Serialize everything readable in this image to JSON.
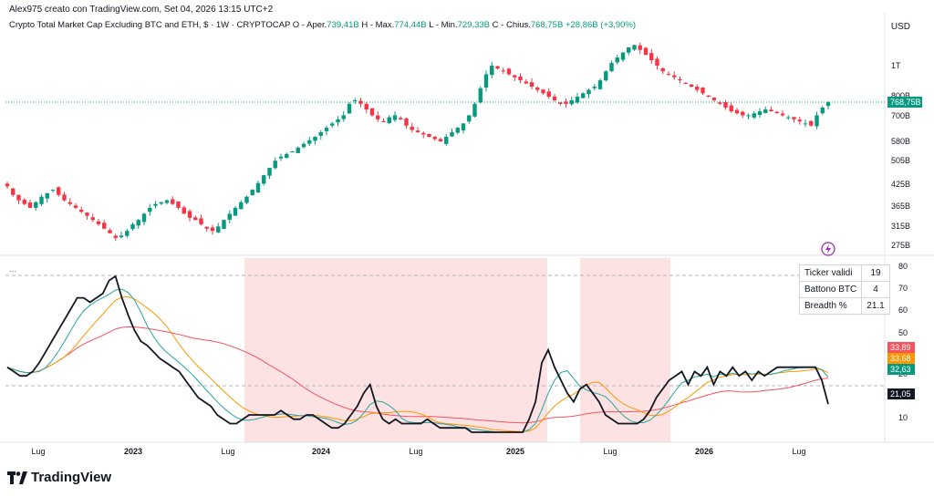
{
  "header": {
    "creator_line": "Alex975 creato con TradingView.com, Set 04, 2026 13:15 UTC+2",
    "symbol": "Crypto Total Market Cap Excluding BTC and ETH, $ · 1W · CRYPTOCAP",
    "o_label": "O - Aper.",
    "o_value": "739,41B",
    "h_label": "H - Max.",
    "h_value": "774,44B",
    "l_label": "L - Min.",
    "l_value": "729,33B",
    "c_label": "C - Chius.",
    "c_value": "768,75B",
    "change": "+28,86B (+3,90%)",
    "currency": "USD"
  },
  "price_axis": [
    "1T",
    "800B",
    "700B",
    "580B",
    "505B",
    "425B",
    "365B",
    "315B",
    "275B"
  ],
  "price_tag": "768,75B",
  "indicator_axis": [
    "80",
    "70",
    "60",
    "50",
    "20",
    "10"
  ],
  "indicator_tags": [
    {
      "text": "33,89",
      "color": "#f7525f"
    },
    {
      "text": "33,68",
      "color": "#ff9800"
    },
    {
      "text": "32,63",
      "color": "#089981"
    },
    {
      "text": "21,05",
      "color": "#131722"
    }
  ],
  "time_axis": [
    {
      "text": "Lug",
      "bold": false
    },
    {
      "text": "2023",
      "bold": true
    },
    {
      "text": "Lug",
      "bold": false
    },
    {
      "text": "2024",
      "bold": true
    },
    {
      "text": "Lug",
      "bold": false
    },
    {
      "text": "2025",
      "bold": true
    },
    {
      "text": "Lug",
      "bold": false
    },
    {
      "text": "2026",
      "bold": true
    },
    {
      "text": "Lug",
      "bold": false
    }
  ],
  "stats_table": [
    {
      "label": "Ticker validi",
      "value": "19"
    },
    {
      "label": "Battono BTC",
      "value": "4"
    },
    {
      "label": "Breadth %",
      "value": "21.1"
    }
  ],
  "indicator_menu": "...",
  "brand": "TradingView",
  "colors": {
    "up": "#089981",
    "down": "#f23645",
    "breadth": "#131722",
    "ma_fast": "#26a69a",
    "ma_mid": "#ff9800",
    "ma_slow": "#f7525f",
    "highlight": "#fde2e4"
  },
  "chart_data": {
    "type": "candlestick",
    "interval": "1W",
    "price_close_series": [
      420,
      395,
      380,
      370,
      360,
      375,
      390,
      400,
      410,
      395,
      380,
      370,
      360,
      350,
      340,
      330,
      320,
      310,
      300,
      290,
      295,
      305,
      320,
      330,
      345,
      360,
      370,
      375,
      380,
      370,
      360,
      345,
      335,
      330,
      320,
      310,
      305,
      315,
      330,
      345,
      360,
      375,
      390,
      410,
      430,
      455,
      480,
      505,
      520,
      530,
      540,
      555,
      570,
      585,
      600,
      620,
      640,
      660,
      680,
      700,
      760,
      780,
      760,
      730,
      700,
      680,
      670,
      690,
      700,
      680,
      650,
      630,
      620,
      610,
      600,
      590,
      580,
      600,
      620,
      640,
      660,
      700,
      760,
      850,
      940,
      1000,
      980,
      960,
      940,
      920,
      900,
      880,
      860,
      840,
      820,
      800,
      780,
      760,
      760,
      780,
      800,
      820,
      840,
      860,
      900,
      960,
      1020,
      1060,
      1100,
      1140,
      1160,
      1120,
      1080,
      1040,
      1000,
      960,
      940,
      920,
      900,
      880,
      860,
      840,
      820,
      800,
      780,
      760,
      740,
      720,
      710,
      700,
      700,
      710,
      720,
      730,
      720,
      710,
      700,
      690,
      680,
      670,
      660,
      650,
      700,
      740,
      769
    ],
    "breadth_series": [
      38,
      36,
      34,
      34,
      36,
      40,
      45,
      50,
      55,
      60,
      65,
      70,
      70,
      68,
      70,
      72,
      78,
      80,
      70,
      62,
      55,
      50,
      48,
      45,
      42,
      40,
      38,
      36,
      32,
      28,
      24,
      22,
      20,
      16,
      14,
      12,
      12,
      14,
      16,
      16,
      16,
      16,
      16,
      18,
      16,
      14,
      14,
      16,
      16,
      14,
      12,
      10,
      10,
      12,
      16,
      20,
      26,
      30,
      20,
      14,
      12,
      14,
      12,
      12,
      12,
      12,
      14,
      12,
      10,
      10,
      10,
      10,
      10,
      8,
      8,
      8,
      8,
      8,
      8,
      8,
      8,
      8,
      14,
      22,
      40,
      46,
      38,
      32,
      26,
      22,
      28,
      30,
      26,
      22,
      16,
      14,
      12,
      12,
      12,
      12,
      14,
      18,
      24,
      28,
      32,
      34,
      36,
      30,
      36,
      34,
      38,
      30,
      36,
      34,
      38,
      34,
      36,
      32,
      36,
      34,
      36,
      38,
      38,
      38,
      38,
      38,
      38,
      38,
      32,
      21
    ]
  }
}
